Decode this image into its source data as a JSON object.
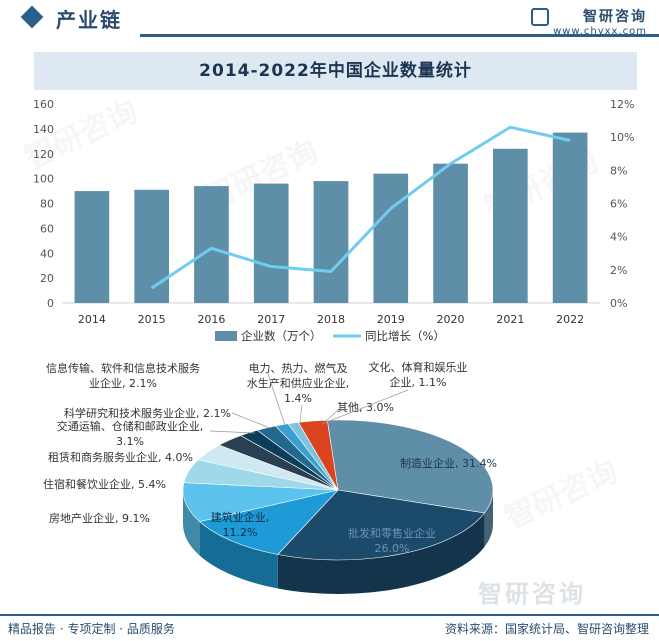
{
  "header": {
    "title": "产业链"
  },
  "brand": {
    "name": "智研咨询",
    "url": "www.chyxx.com"
  },
  "chart_title": "2014-2022年中国企业数量统计",
  "colors": {
    "bar": "#5f8fa8",
    "line": "#6fcdf0",
    "accent": "#2b5f8a"
  },
  "chart_data": [
    {
      "type": "bar",
      "title": "2014-2022年中国企业数量统计",
      "categories": [
        "2014",
        "2015",
        "2016",
        "2017",
        "2018",
        "2019",
        "2020",
        "2021",
        "2022"
      ],
      "series": [
        {
          "name": "企业数（万个）",
          "type": "bar",
          "axis": "left",
          "values": [
            90,
            91,
            94,
            96,
            98,
            104,
            112,
            124,
            137
          ]
        },
        {
          "name": "同比增长（%）",
          "type": "line",
          "axis": "right",
          "values": [
            null,
            0.9,
            3.3,
            2.2,
            1.9,
            5.7,
            8.4,
            10.6,
            9.8
          ]
        }
      ],
      "y_left": {
        "ylim": [
          0,
          160
        ],
        "ticks": [
          "0",
          "20",
          "40",
          "60",
          "80",
          "100",
          "120",
          "140",
          "160"
        ]
      },
      "y_right": {
        "ylim": [
          0,
          12
        ],
        "ticks": [
          "0%",
          "2%",
          "4%",
          "6%",
          "8%",
          "10%",
          "12%"
        ]
      },
      "legend": "bottom",
      "grid": false
    },
    {
      "type": "pie",
      "slices": [
        {
          "label": "制造业企业",
          "value": 31.4,
          "text": "制造业企业, 31.4%",
          "color": "#5f8fa8"
        },
        {
          "label": "批发和零售业企业",
          "value": 26.0,
          "text": "批发和零售业企业, 26.0%",
          "color": "#1b4a6b"
        },
        {
          "label": "建筑业企业",
          "value": 11.2,
          "text": "建筑业企业, 11.2%",
          "color": "#1e9ad6"
        },
        {
          "label": "房地产业企业",
          "value": 9.1,
          "text": "房地产业企业, 9.1%",
          "color": "#5cc3ee"
        },
        {
          "label": "住宿和餐饮业企业",
          "value": 5.4,
          "text": "住宿和餐饮业企业, 5.4%",
          "color": "#9fd8e8"
        },
        {
          "label": "租赁和商务服务业企业",
          "value": 4.0,
          "text": "租赁和商务服务业企业, 4.0%",
          "color": "#cfe9f3"
        },
        {
          "label": "交通运输、仓储和邮政业企业",
          "value": 3.1,
          "text": "交通运输、仓储和邮政业企业, 3.1%",
          "color": "#2a3f52"
        },
        {
          "label": "科学研究和技术服务业企业",
          "value": 2.1,
          "text": "科学研究和技术服务业企业, 2.1%",
          "color": "#0e3d5c"
        },
        {
          "label": "信息传输、软件和信息技术服务业企业",
          "value": 2.1,
          "text": "信息传输、软件和信息技术服务业企业, 2.1%",
          "color": "#23688e"
        },
        {
          "label": "电力、热力、燃气及水生产和供应业企业",
          "value": 1.4,
          "text": "电力、热力、燃气及水生产和供应业企业, 1.4%",
          "color": "#3aa0cf"
        },
        {
          "label": "文化、体育和娱乐业企业",
          "value": 1.1,
          "text": "文化、体育和娱乐业企业, 1.1%",
          "color": "#7ec2dc"
        },
        {
          "label": "其他",
          "value": 3.0,
          "text": "其他, 3.0%",
          "color": "#d9441f"
        }
      ]
    }
  ],
  "footer": {
    "left": "精品报告 · 专项定制 · 品质服务",
    "right": "资料来源：国家统计局、智研咨询整理"
  }
}
